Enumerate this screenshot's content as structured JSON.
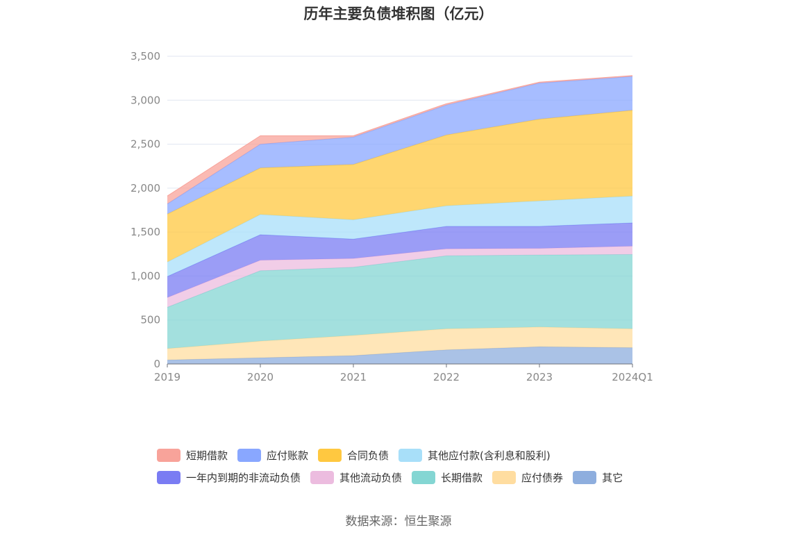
{
  "page": {
    "source": "数据来源：恒生聚源"
  },
  "chart_data": {
    "type": "area",
    "stacked": true,
    "title": "历年主要负债堆积图（亿元）",
    "x": [
      "2019",
      "2020",
      "2021",
      "2022",
      "2023",
      "2024Q1"
    ],
    "ylim": [
      0,
      3500
    ],
    "yticks": [
      0,
      500,
      1000,
      1500,
      2000,
      2500,
      3000,
      3500
    ],
    "ytick_labels": [
      "0",
      "500",
      "1,000",
      "1,500",
      "2,000",
      "2,500",
      "3,000",
      "3,500"
    ],
    "grid": true,
    "legend_position": "bottom",
    "series": [
      {
        "name": "其它",
        "color": "#8eaede",
        "values": [
          45,
          70,
          95,
          160,
          195,
          185
        ]
      },
      {
        "name": "应付债券",
        "color": "#ffdda0",
        "values": [
          130,
          190,
          230,
          240,
          225,
          215
        ]
      },
      {
        "name": "长期借款",
        "color": "#84d6d3",
        "values": [
          470,
          800,
          775,
          830,
          820,
          845
        ]
      },
      {
        "name": "其他流动负债",
        "color": "#ecbcdf",
        "values": [
          110,
          120,
          100,
          80,
          75,
          95
        ]
      },
      {
        "name": "一年内到期的非流动负债",
        "color": "#7a7cf3",
        "values": [
          240,
          290,
          220,
          255,
          250,
          265
        ]
      },
      {
        "name": "其他应付款(含利息和股利)",
        "color": "#a8dff9",
        "values": [
          165,
          230,
          220,
          235,
          290,
          305
        ]
      },
      {
        "name": "合同负债",
        "color": "#ffc840",
        "values": [
          545,
          530,
          630,
          805,
          930,
          975
        ]
      },
      {
        "name": "应付账款",
        "color": "#89a7ff",
        "values": [
          115,
          270,
          310,
          340,
          410,
          385
        ]
      },
      {
        "name": "短期借款",
        "color": "#f8a39a",
        "values": [
          90,
          95,
          15,
          15,
          10,
          10
        ]
      }
    ]
  }
}
